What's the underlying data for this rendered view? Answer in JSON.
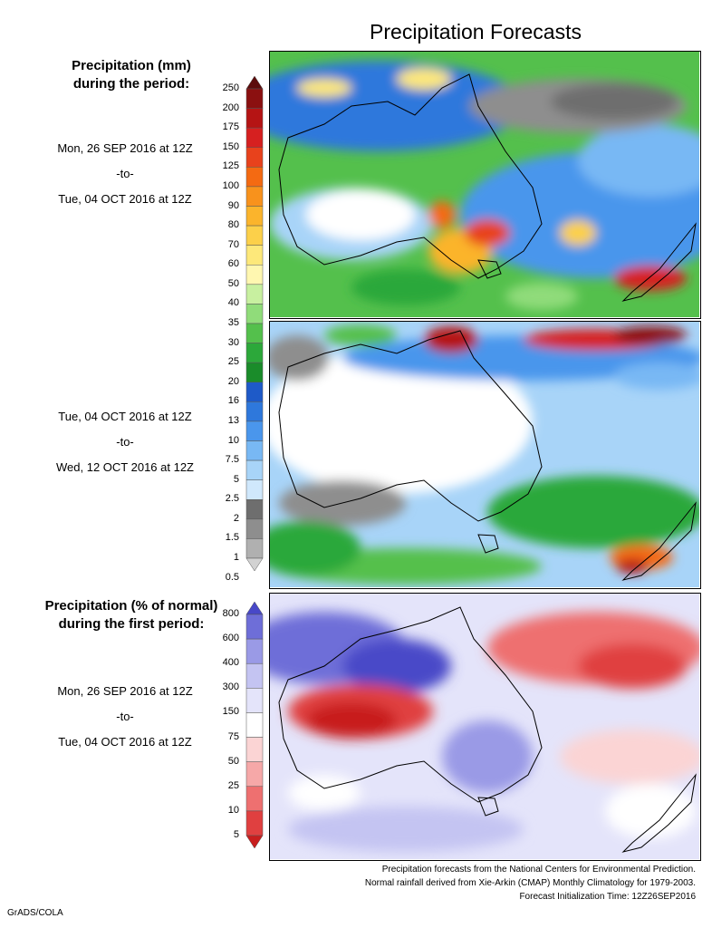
{
  "title": "Precipitation Forecasts",
  "amount_heading": [
    "Precipitation (mm)",
    "during the period:"
  ],
  "period1": {
    "start": "Mon, 26 SEP 2016 at 12Z",
    "sep": "-to-",
    "end": "Tue, 04 OCT 2016 at 12Z"
  },
  "period2": {
    "start": "Tue, 04 OCT 2016 at 12Z",
    "sep": "-to-",
    "end": "Wed, 12 OCT 2016 at 12Z"
  },
  "percent_heading": [
    "Precipitation (% of normal)",
    "during the first period:"
  ],
  "period3": {
    "start": "Mon, 26 SEP 2016 at 12Z",
    "sep": "-to-",
    "end": "Tue, 04 OCT 2016 at 12Z"
  },
  "amount_scale": {
    "labels": [
      "250",
      "200",
      "175",
      "150",
      "125",
      "100",
      "90",
      "80",
      "70",
      "60",
      "50",
      "40",
      "35",
      "30",
      "25",
      "20",
      "16",
      "13",
      "10",
      "7.5",
      "5",
      "2.5",
      "2",
      "1.5",
      "1",
      "0.5"
    ],
    "colors": [
      "#5c0c0c",
      "#8b1010",
      "#b51414",
      "#d62020",
      "#e8421c",
      "#f46a12",
      "#f8921c",
      "#fbb42c",
      "#fcd04a",
      "#fde87a",
      "#fff7b0",
      "#c8f0a0",
      "#90dc7a",
      "#54c04c",
      "#2ca83a",
      "#1a8c2a",
      "#1e5ac8",
      "#2e78dc",
      "#4a96ec",
      "#78b8f4",
      "#a8d4f8",
      "#d0e8fc",
      "#6e6e6e",
      "#8e8e8e",
      "#b0b0b0",
      "#d2d2d2"
    ]
  },
  "percent_scale": {
    "labels": [
      "800",
      "600",
      "400",
      "300",
      "150",
      "75",
      "50",
      "25",
      "10",
      "5"
    ],
    "colors": [
      "#4848c8",
      "#6e6ed8",
      "#9a9ae6",
      "#c4c4f2",
      "#e4e4fa",
      "#ffffff",
      "#fbd4d4",
      "#f6a8a8",
      "#ee7070",
      "#e04040",
      "#c81e1e"
    ]
  },
  "footer": [
    "Precipitation forecasts from the National Centers for Environmental Prediction.",
    "Normal rainfall derived from Xie-Arkin (CMAP) Monthly Climatology for 1979-2003.",
    "Forecast Initialization Time: 12Z26SEP2016"
  ],
  "credit": "GrADS/COLA"
}
